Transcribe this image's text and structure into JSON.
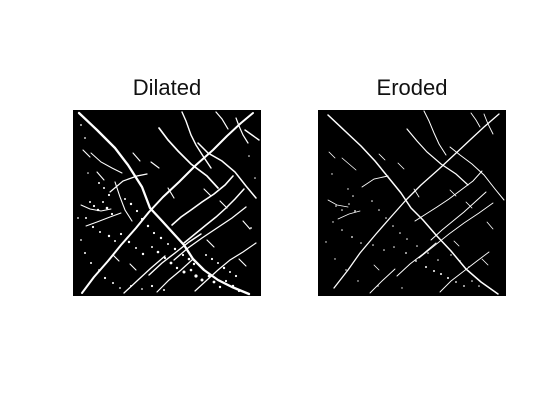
{
  "figure": {
    "panels": [
      {
        "title": "Dilated"
      },
      {
        "title": "Eroded"
      }
    ]
  }
}
